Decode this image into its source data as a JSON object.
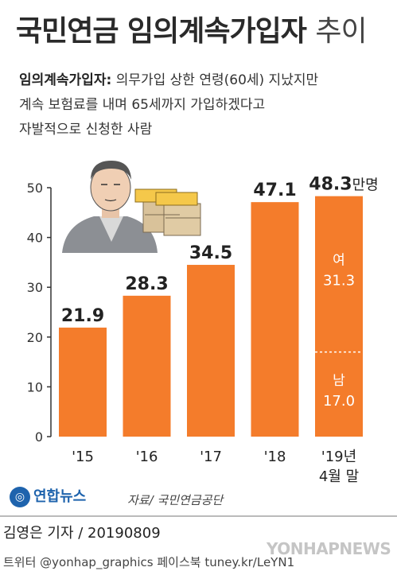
{
  "header": {
    "title_main": "국민연금 임의계속가입자",
    "title_light": "추이"
  },
  "definition": {
    "term": "임의계속가입자:",
    "line1": "의무가입 상한 연령(60세) 지났지만",
    "line2": "계속 보험료를 내며 65세까지 가입하겠다고",
    "line3": "자발적으로 신청한 사람"
  },
  "chart_data": {
    "type": "bar",
    "categories": [
      "'15",
      "'16",
      "'17",
      "'18",
      "'19년\n4월 말"
    ],
    "values": [
      21.9,
      28.3,
      34.5,
      47.1,
      48.3
    ],
    "value_labels": [
      "21.9",
      "28.3",
      "34.5",
      "47.1",
      "48.3"
    ],
    "unit": "만명",
    "ylim": [
      0,
      50
    ],
    "yticks": [
      0,
      10,
      20,
      30,
      40,
      50
    ],
    "ytick_labels": [
      "0",
      "10",
      "20",
      "30",
      "40",
      "50"
    ],
    "grid": false,
    "bar_color": "#f47c2b",
    "last_bar_breakdown": [
      {
        "name": "여",
        "value_label": "31.3",
        "value": 31.3
      },
      {
        "name": "남",
        "value_label": "17.0",
        "value": 17.0
      }
    ]
  },
  "footer": {
    "logo_text": "연합뉴스",
    "source": "자료/ 국민연금공단",
    "byline": "김영은 기자 / 20190809",
    "social": "트위터 @yonhap_graphics  페이스북 tuney.kr/LeYN1",
    "watermark": "YONHAPNEWS"
  },
  "colors": {
    "bar": "#f47c2b",
    "axis": "#333333",
    "logo": "#1e63ad"
  }
}
